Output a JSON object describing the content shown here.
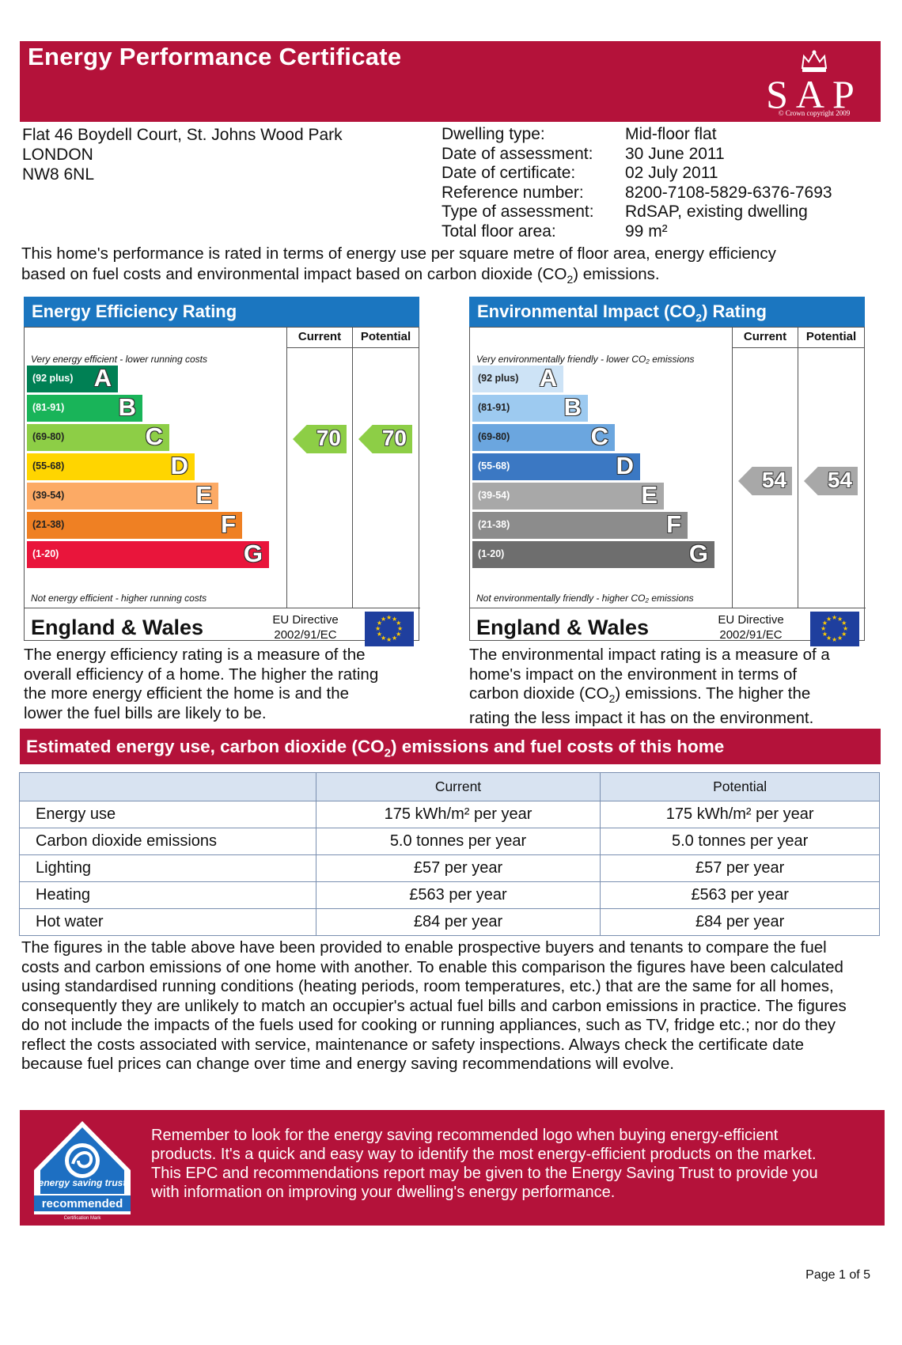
{
  "header": {
    "title": "Energy Performance Certificate",
    "logo_text": "SAP",
    "logo_copyright": "© Crown copyright 2009"
  },
  "address": [
    "Flat 46 Boydell Court, St. Johns Wood Park",
    "LONDON",
    "NW8 6NL"
  ],
  "details": {
    "labels": [
      "Dwelling type:",
      "Date of assessment:",
      "Date of certificate:",
      "Reference number:",
      "Type of assessment:",
      "Total floor area:"
    ],
    "values": [
      "Mid-floor flat",
      "30 June 2011",
      "02 July 2011",
      "8200-7108-5829-6376-7693",
      "RdSAP, existing dwelling",
      "99 m²"
    ]
  },
  "intro": {
    "line1": "This home's performance is rated in terms of energy use per square metre of floor area, energy efficiency",
    "line2a": "based on fuel costs and environmental impact based on carbon dioxide (CO",
    "line2sub": "2",
    "line2b": ") emissions."
  },
  "energy_panel": {
    "title": "Energy Efficiency Rating",
    "col_current": "Current",
    "col_potential": "Potential",
    "top_note": "Very energy efficient - lower running costs",
    "bottom_note": "Not energy efficient - higher running costs",
    "bands": [
      {
        "range": "(92 plus)",
        "letter": "A",
        "color": "#008054"
      },
      {
        "range": "(81-91)",
        "letter": "B",
        "color": "#19b459"
      },
      {
        "range": "(69-80)",
        "letter": "C",
        "color": "#8dce46"
      },
      {
        "range": "(55-68)",
        "letter": "D",
        "color": "#ffd500"
      },
      {
        "range": "(39-54)",
        "letter": "E",
        "color": "#fcaa65"
      },
      {
        "range": "(21-38)",
        "letter": "F",
        "color": "#ef8023"
      },
      {
        "range": "(1-20)",
        "letter": "G",
        "color": "#e9153b"
      }
    ],
    "current": "70",
    "potential": "70",
    "arrow_color": "#8dce46",
    "region": "England & Wales",
    "directive_line1": "EU Directive",
    "directive_line2": "2002/91/EC"
  },
  "env_panel": {
    "title_a": "Environmental Impact (CO",
    "title_sub": "2",
    "title_b": ") Rating",
    "col_current": "Current",
    "col_potential": "Potential",
    "top_note": "Very environmentally friendly - lower CO₂ emissions",
    "bottom_note": "Not environmentally friendly - higher CO₂ emissions",
    "bands": [
      {
        "range": "(92 plus)",
        "letter": "A",
        "color": "#cde3f6"
      },
      {
        "range": "(81-91)",
        "letter": "B",
        "color": "#9dcaf0"
      },
      {
        "range": "(69-80)",
        "letter": "C",
        "color": "#6ba6df"
      },
      {
        "range": "(55-68)",
        "letter": "D",
        "color": "#3b78c3"
      },
      {
        "range": "(39-54)",
        "letter": "E",
        "color": "#a8a8a8"
      },
      {
        "range": "(21-38)",
        "letter": "F",
        "color": "#8c8c8c"
      },
      {
        "range": "(1-20)",
        "letter": "G",
        "color": "#6e6e6e"
      }
    ],
    "current": "54",
    "potential": "54",
    "arrow_color": "#a8a8a8",
    "region": "England & Wales",
    "directive_line1": "EU Directive",
    "directive_line2": "2002/91/EC"
  },
  "energy_desc": [
    "The energy efficiency rating is a measure of the",
    "overall efficiency of a home. The higher the rating",
    "the more energy efficient the home is and the",
    "lower the fuel bills are likely to be."
  ],
  "env_desc": {
    "l1": "The environmental impact rating is a measure of a",
    "l2": "home's impact on the environment in terms of",
    "l3a": "carbon dioxide (CO",
    "l3sub": "2",
    "l3b": ") emissions. The higher the",
    "l4": "rating the less impact it has on the environment."
  },
  "estimates": {
    "title_a": "Estimated energy use, carbon dioxide (CO",
    "title_sub": "2",
    "title_b": ") emissions and fuel costs of this home",
    "headers": [
      "",
      "Current",
      "Potential"
    ],
    "rows": [
      [
        "Energy use",
        "175 kWh/m² per year",
        "175 kWh/m² per year"
      ],
      [
        "Carbon dioxide emissions",
        "5.0 tonnes per year",
        "5.0 tonnes per year"
      ],
      [
        "Lighting",
        "£57 per year",
        "£57 per year"
      ],
      [
        "Heating",
        "£563 per year",
        "£563 per year"
      ],
      [
        "Hot water",
        "£84 per year",
        "£84 per year"
      ]
    ]
  },
  "paragraph": [
    "The figures in the table above have been provided to enable prospective buyers and tenants to compare the fuel",
    "costs and carbon emissions of one home with another. To enable this comparison the figures have been calculated",
    "using standardised running conditions (heating periods, room temperatures, etc.) that are the same for all homes,",
    "consequently they are unlikely to match an occupier's actual fuel bills and carbon emissions in practice. The figures",
    "do not include the impacts of the fuels used for cooking or running appliances, such as TV, fridge etc.; nor do they",
    "reflect the costs associated with service, maintenance or safety inspections. Always check the certificate date",
    "because fuel prices can change over time and energy saving recommendations will evolve."
  ],
  "recommend": {
    "lines": [
      "Remember to look for the energy saving recommended logo when buying energy-efficient",
      "products. It's a quick and easy way to identify the most energy-efficient products on the market.",
      "This EPC and recommendations report may be given to the Energy Saving Trust to provide you",
      "with information on improving your dwelling's energy performance."
    ],
    "badge_arc": "energy saving trust",
    "badge_word": "recommended",
    "badge_small": "Certification Mark"
  },
  "page_label": "Page 1 of 5"
}
